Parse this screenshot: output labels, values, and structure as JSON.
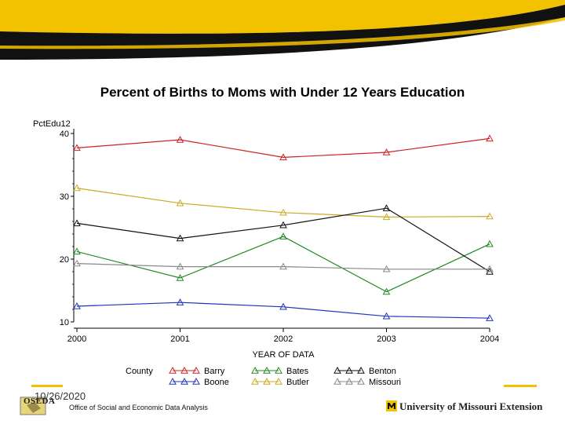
{
  "title": "Percent of Births to Moms with Under 12 Years Education",
  "footer": {
    "date": "10/26/2020",
    "office": "Office of Social and Economic Data Analysis",
    "oseda_logo_text": "OSEDA",
    "university": "University of Missouri Extension"
  },
  "colors": {
    "banner_gold": "#f2c200",
    "banner_black": "#111111"
  },
  "chart_data": {
    "type": "line",
    "ylabel": "PctEdu12",
    "xlabel": "YEAR OF DATA",
    "legend_title": "County",
    "legend_position": "bottom",
    "grid": false,
    "x": [
      "2000",
      "2001",
      "2002",
      "2003",
      "2004"
    ],
    "x_tick_labels": [
      "2000",
      "2001",
      "2002",
      "2003",
      "2004"
    ],
    "y_ticks": [
      10,
      20,
      30,
      40
    ],
    "y_tick_labels": [
      "10",
      "20",
      "30",
      "40"
    ],
    "ylim": [
      10,
      40
    ],
    "series": [
      {
        "name": "Barry",
        "color": "#cc2222",
        "values": [
          37.7,
          39.0,
          36.2,
          37.0,
          39.2
        ]
      },
      {
        "name": "Boone",
        "color": "#2233bb",
        "values": [
          12.5,
          13.1,
          12.4,
          10.9,
          10.6
        ]
      },
      {
        "name": "Bates",
        "color": "#228822",
        "values": [
          21.2,
          17.0,
          23.6,
          14.8,
          22.4
        ]
      },
      {
        "name": "Butler",
        "color": "#ccaa22",
        "values": [
          31.3,
          28.9,
          27.4,
          26.7,
          26.8
        ]
      },
      {
        "name": "Benton",
        "color": "#111111",
        "values": [
          25.7,
          23.3,
          25.4,
          28.1,
          18.0
        ]
      },
      {
        "name": "Missouri",
        "color": "#888888",
        "values": [
          19.3,
          18.8,
          18.8,
          18.4,
          18.4
        ]
      }
    ]
  }
}
